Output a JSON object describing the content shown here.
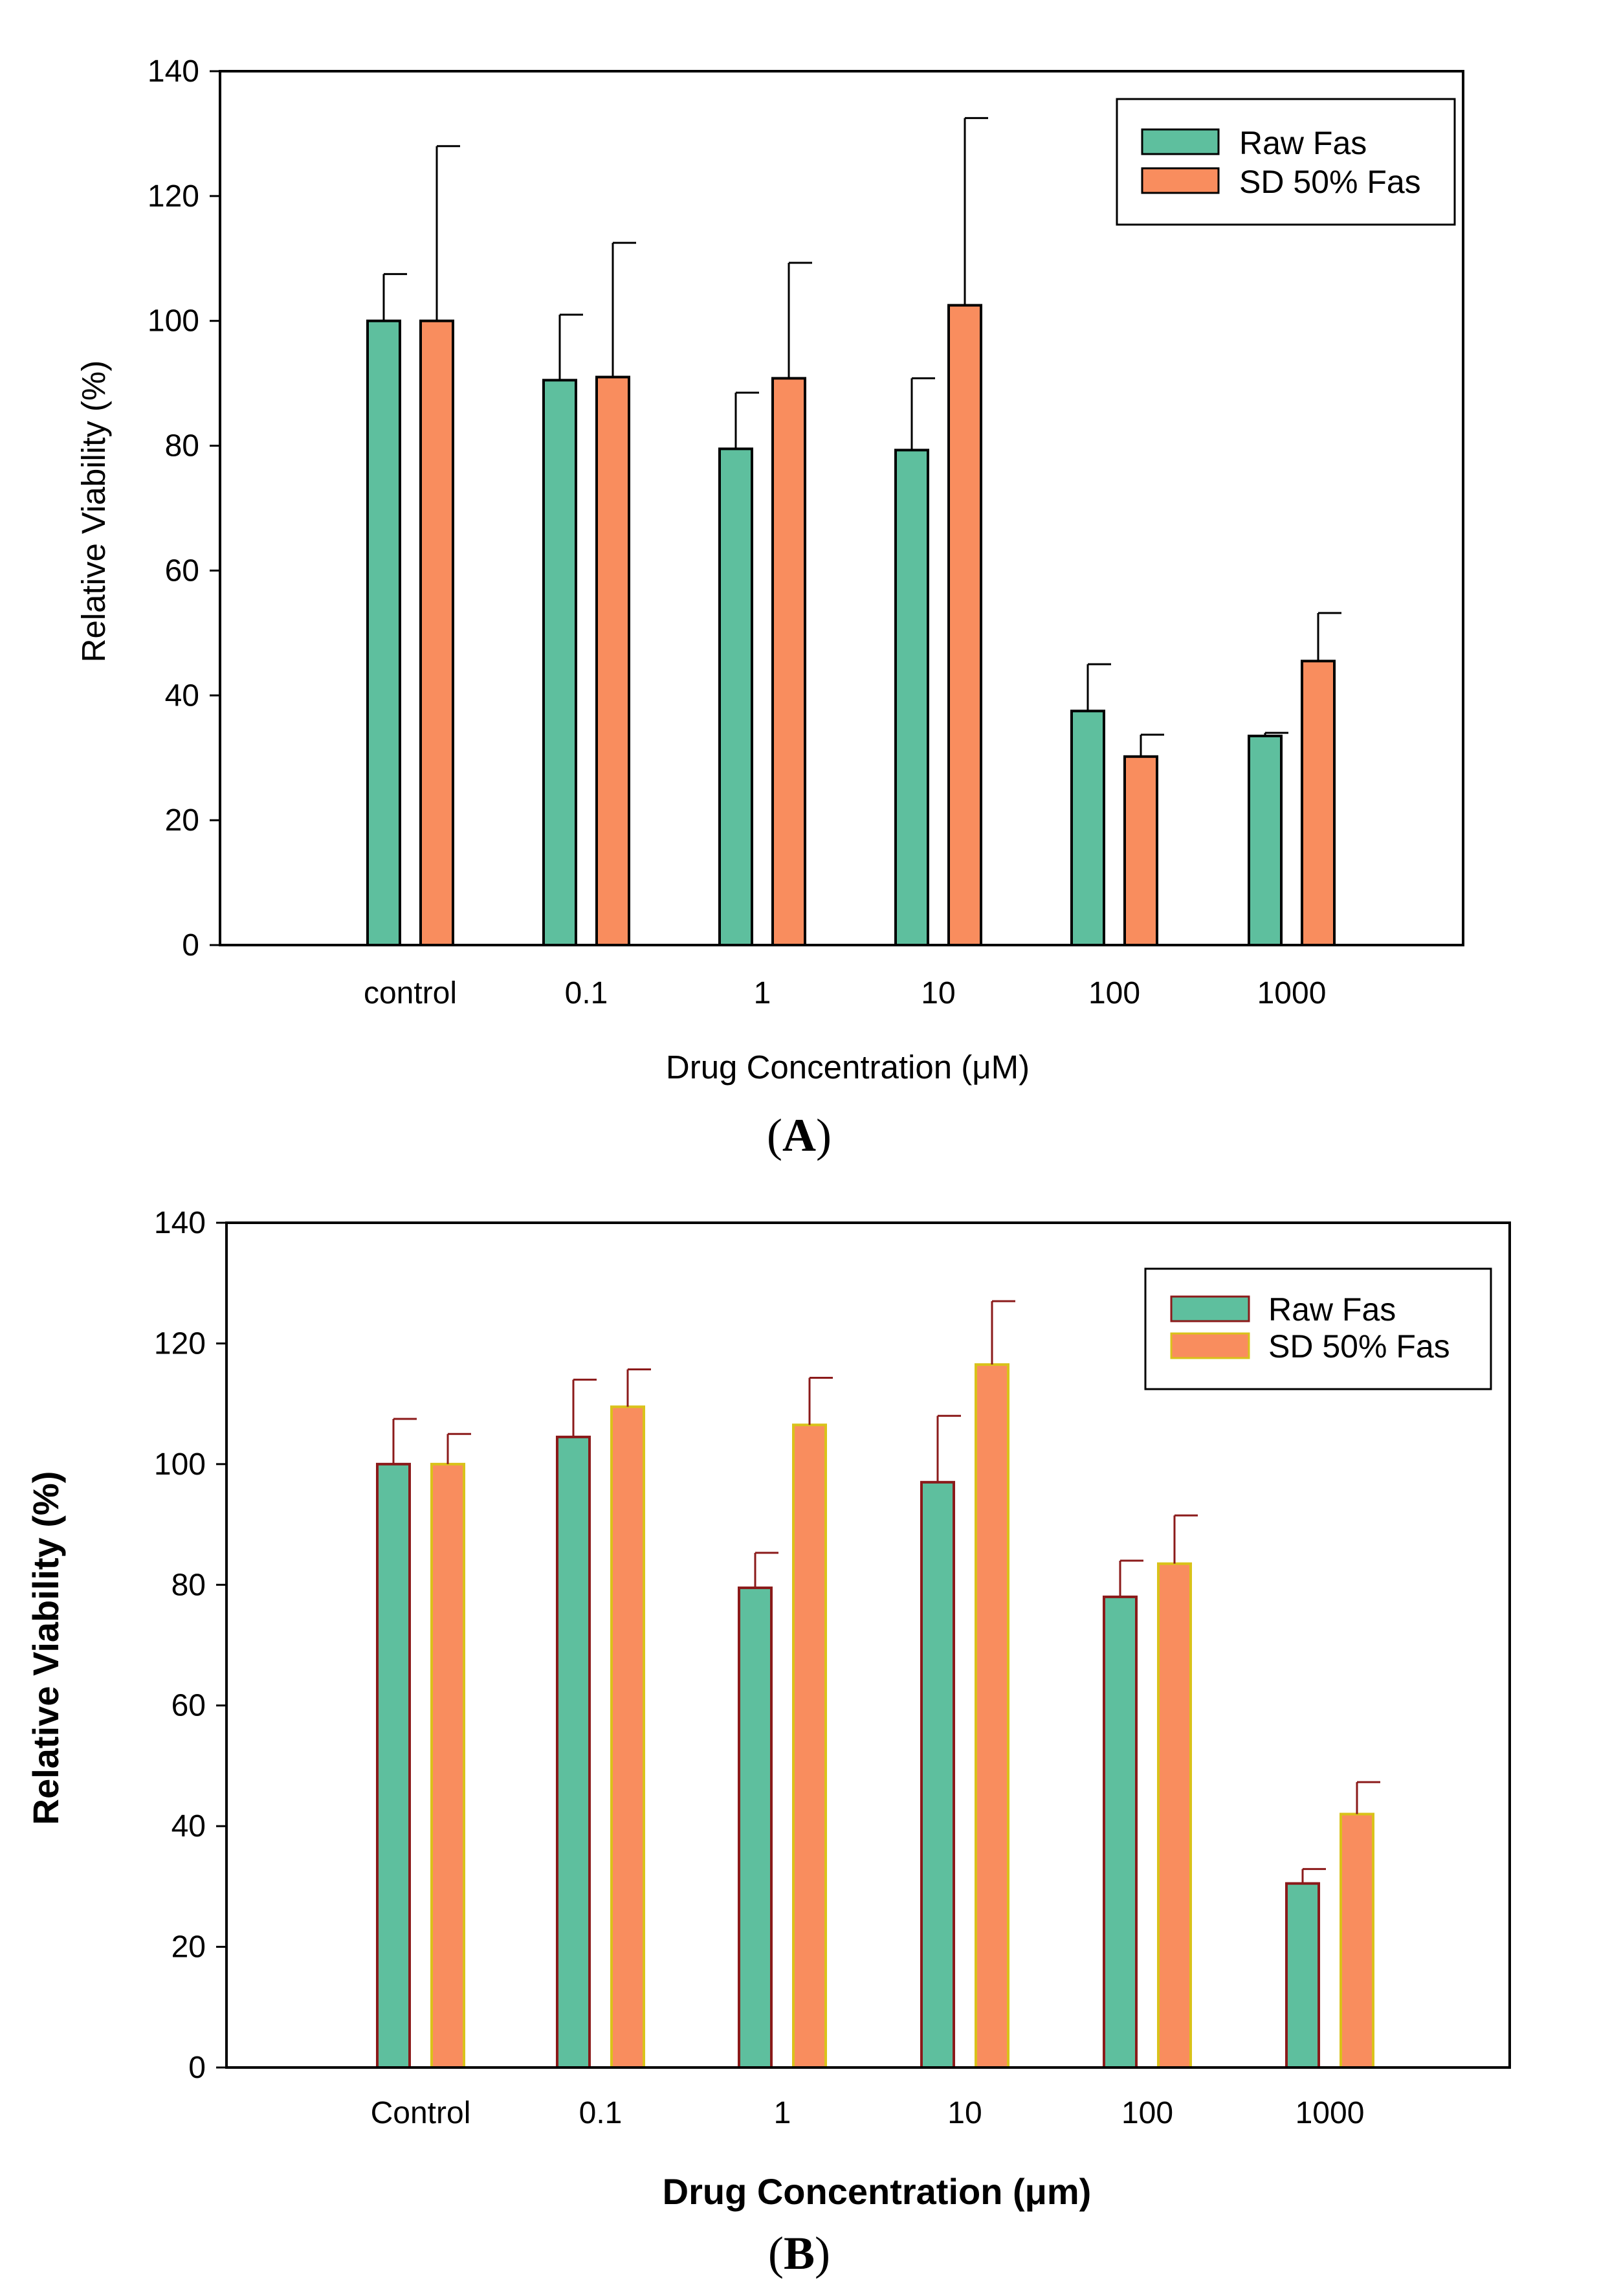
{
  "figure": {
    "panel_labels": [
      {
        "open": "(",
        "letter": "A",
        "close": ")"
      },
      {
        "open": "(",
        "letter": "B",
        "close": ")"
      }
    ]
  },
  "chart_data": [
    {
      "type": "bar",
      "panel": "A",
      "title": "",
      "xlabel": "Drug Concentration (μM)",
      "ylabel": "Relative Viability (%)",
      "categories": [
        "control",
        "0.1",
        "1",
        "10",
        "100",
        "1000"
      ],
      "ylim": [
        0,
        140
      ],
      "yticks": [
        "0",
        "20",
        "40",
        "60",
        "80",
        "100",
        "120",
        "140"
      ],
      "legend_position": "top-right",
      "bar_outline": "#000000",
      "error_color": "#000000",
      "series": [
        {
          "name": "Raw Fas",
          "color": "#5ebf9e",
          "values": [
            100,
            90.5,
            79.5,
            79.3,
            37.5,
            33.5
          ],
          "errors": [
            7.5,
            10.5,
            9,
            11.5,
            7.5,
            0.5
          ]
        },
        {
          "name": "SD 50% Fas",
          "color": "#f98d5e",
          "values": [
            100,
            91,
            90.8,
            102.5,
            30.2,
            45.5
          ],
          "errors": [
            28,
            21.5,
            18.5,
            30,
            3.5,
            7.7
          ]
        }
      ]
    },
    {
      "type": "bar",
      "panel": "B",
      "title": "",
      "xlabel": "Drug Concentration (μm)",
      "ylabel": "Relative Viability (%)",
      "categories": [
        "Control",
        "0.1",
        "1",
        "10",
        "100",
        "1000"
      ],
      "ylim": [
        0,
        140
      ],
      "yticks": [
        "0",
        "20",
        "40",
        "60",
        "80",
        "100",
        "120",
        "140"
      ],
      "legend_position": "top-right",
      "error_color": "#8b1a1a",
      "series": [
        {
          "name": "Raw Fas",
          "color": "#5ebf9e",
          "outline": "#8b1a1a",
          "values": [
            100,
            104.5,
            79.5,
            97,
            78,
            30.5
          ],
          "errors": [
            7.5,
            9.5,
            5.8,
            11,
            6,
            2.4
          ]
        },
        {
          "name": "SD 50% Fas",
          "color": "#f98d5e",
          "outline": "#d9c21a",
          "values": [
            100,
            109.5,
            106.5,
            116.5,
            83.5,
            42
          ],
          "errors": [
            5,
            6.2,
            7.8,
            10.5,
            8,
            5.3
          ]
        }
      ]
    }
  ]
}
